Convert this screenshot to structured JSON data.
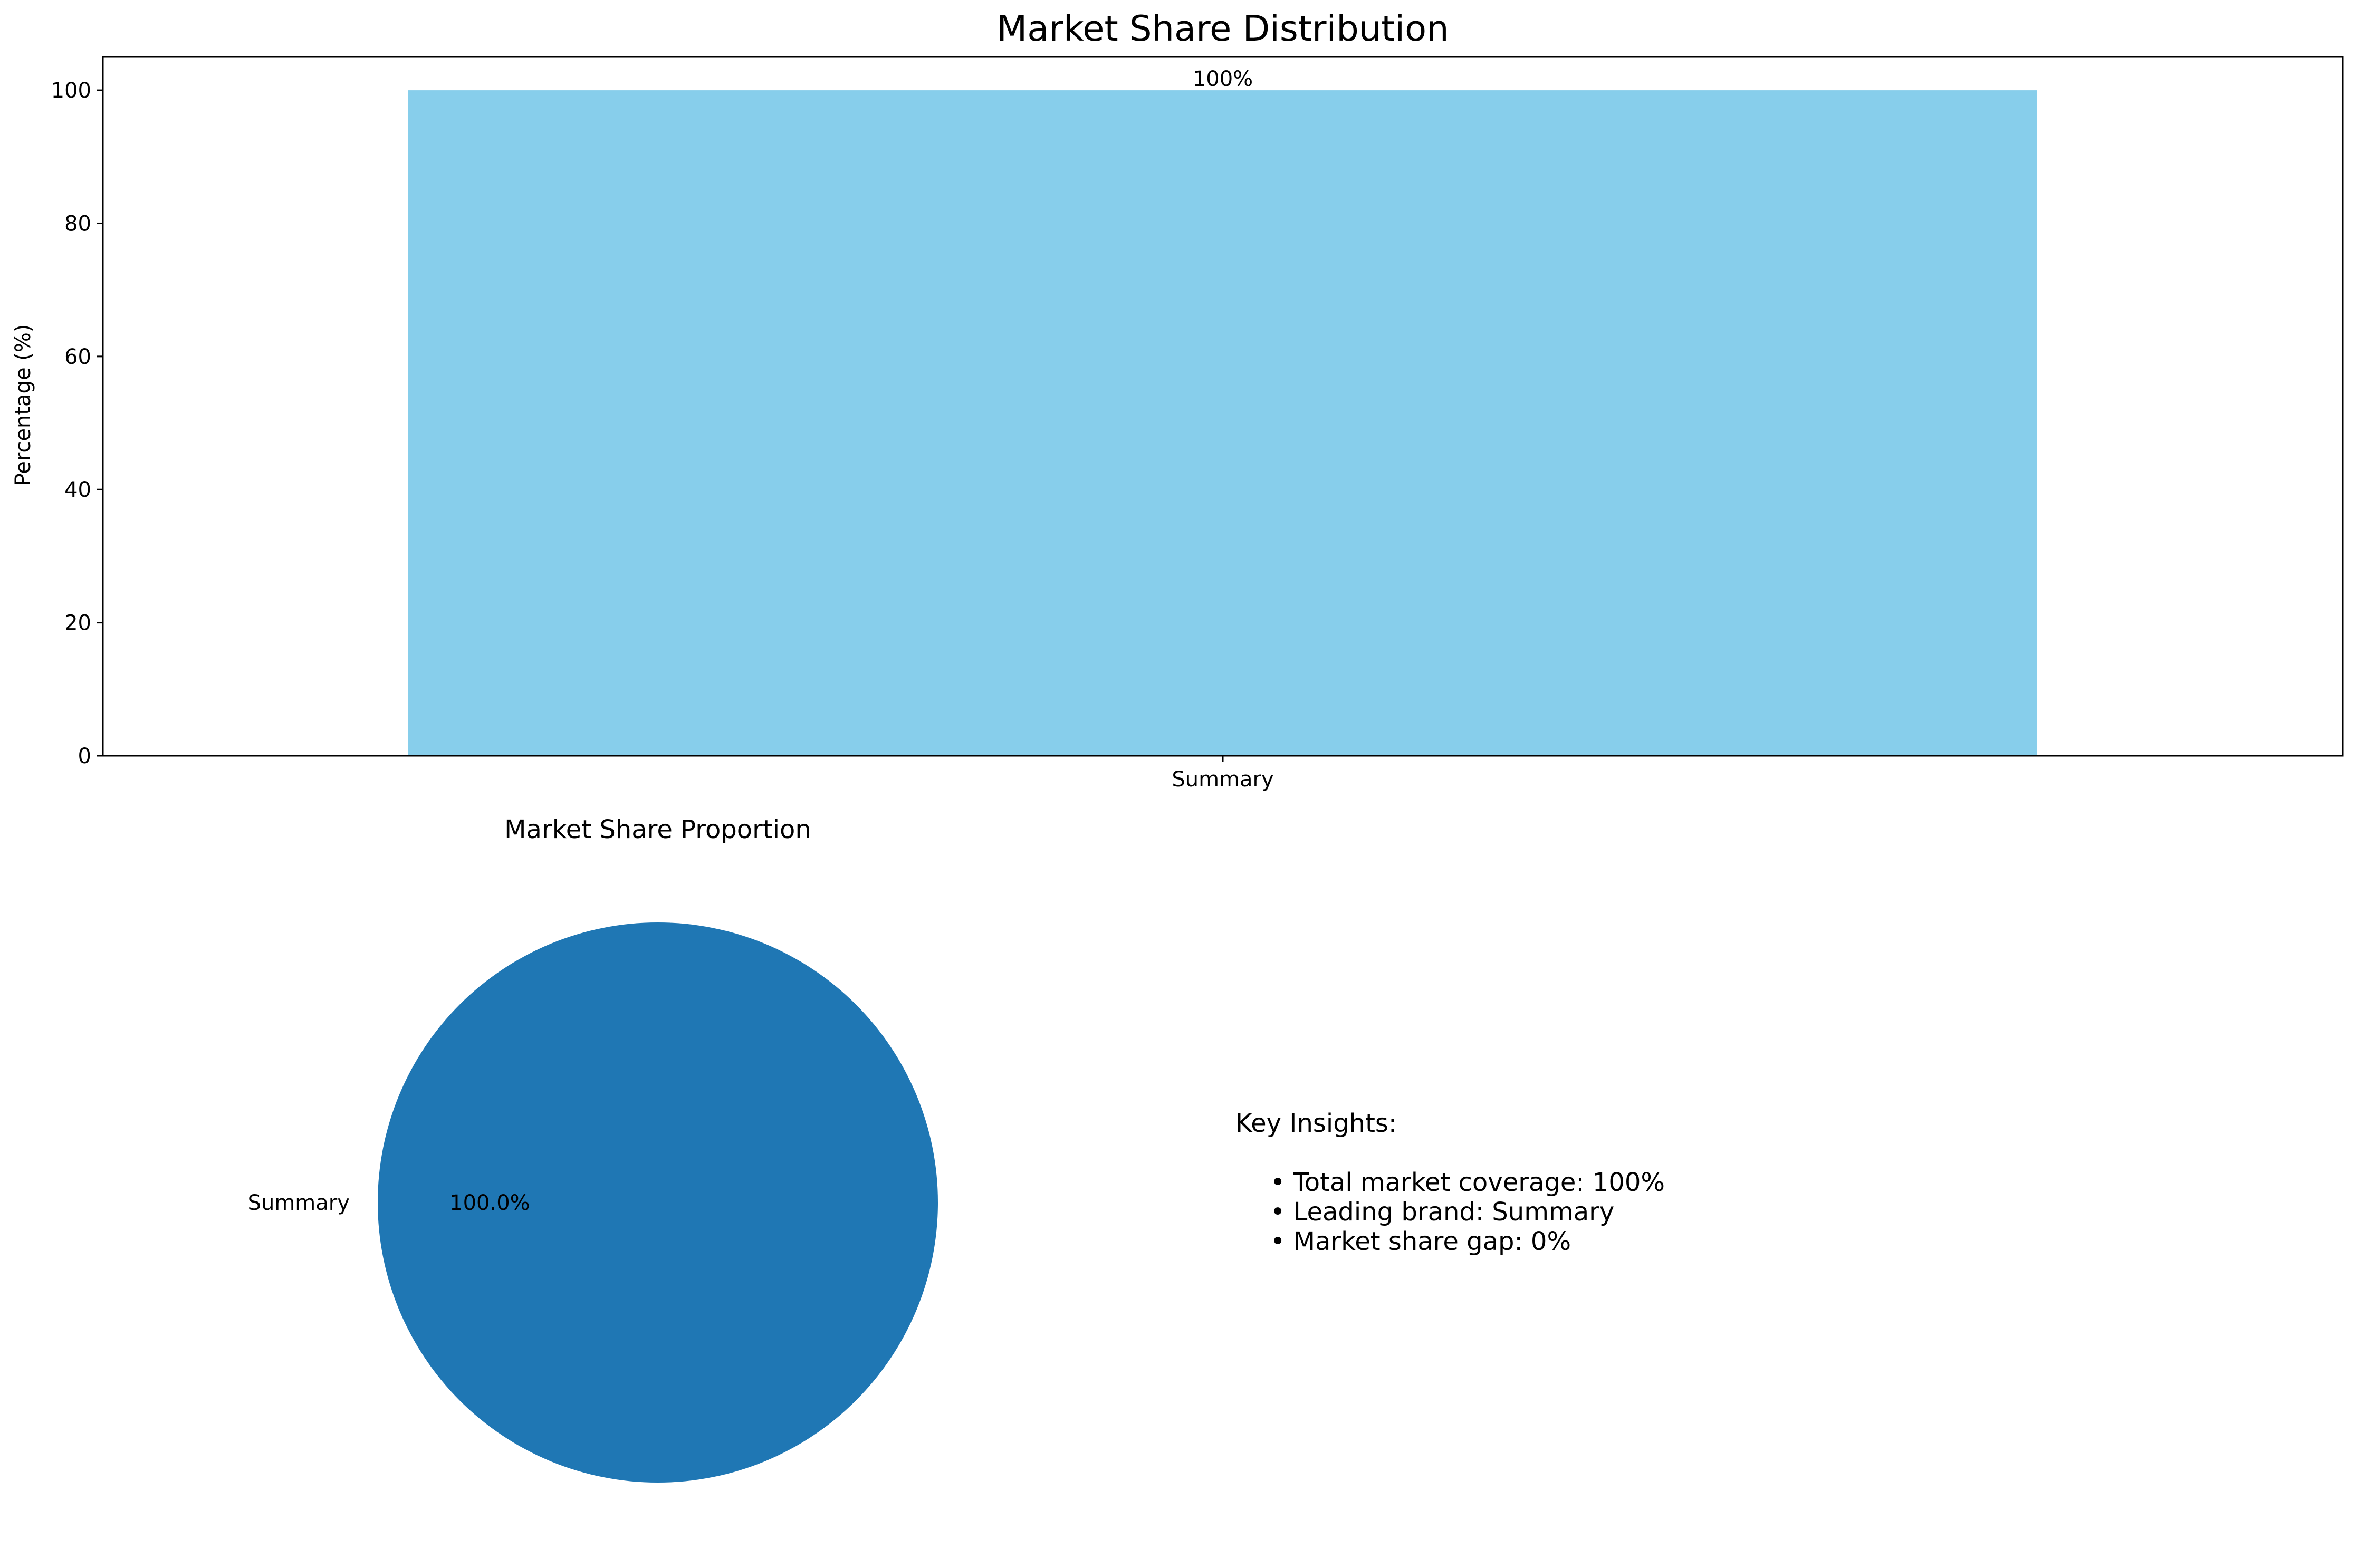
{
  "chart_data": [
    {
      "type": "bar",
      "title": "Market Share Distribution",
      "xlabel": "",
      "ylabel": "Percentage (%)",
      "categories": [
        "Summary"
      ],
      "values": [
        100
      ],
      "data_labels": [
        "100%"
      ],
      "ylim": [
        0,
        105
      ],
      "yticks": [
        0,
        20,
        40,
        60,
        80,
        100
      ],
      "grid": false,
      "color": "#87ceeb"
    },
    {
      "type": "pie",
      "title": "Market Share Proportion",
      "labels": [
        "Summary"
      ],
      "values": [
        100
      ],
      "pct_labels": [
        "100.0%"
      ],
      "colors": [
        "#1f77b4"
      ]
    }
  ],
  "insights": {
    "heading": "Key Insights:",
    "items": [
      "• Total market coverage: 100%",
      "• Leading brand: Summary",
      "• Market share gap: 0%"
    ]
  }
}
